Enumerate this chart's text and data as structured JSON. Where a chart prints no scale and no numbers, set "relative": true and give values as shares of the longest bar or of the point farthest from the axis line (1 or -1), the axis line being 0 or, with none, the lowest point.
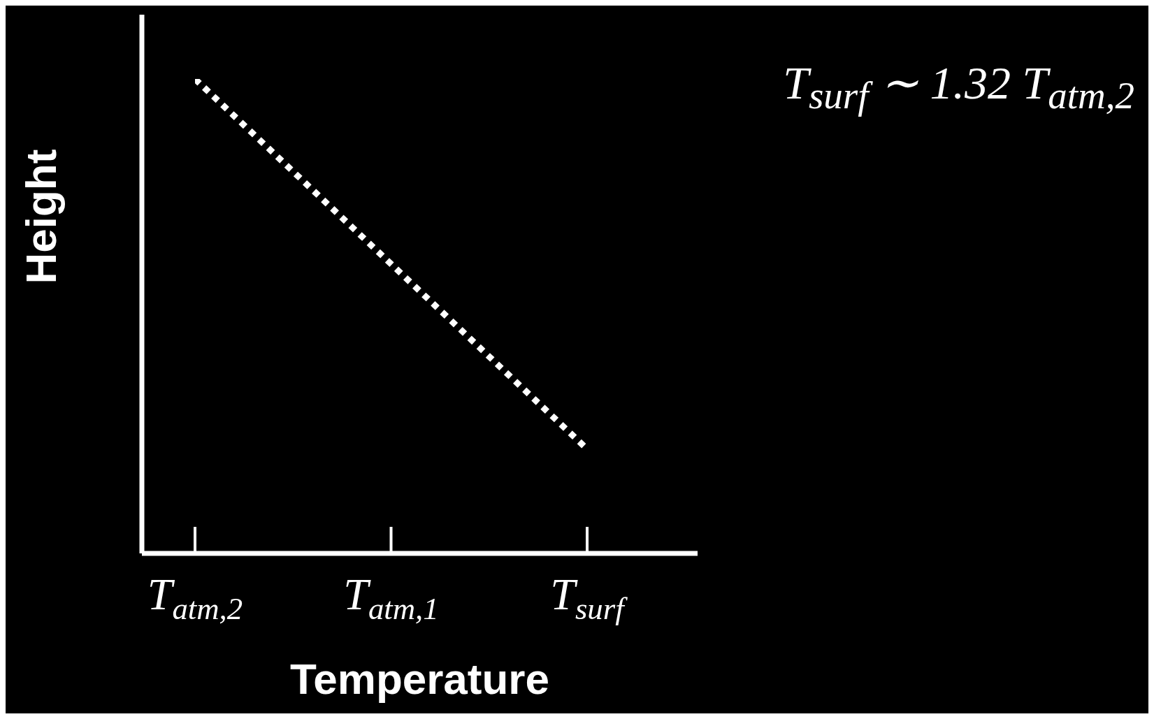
{
  "chart_data": {
    "type": "line",
    "relative": true,
    "xlabel": "Temperature",
    "ylabel": "Height",
    "categories": [
      "T$_{atm,2}$",
      "T$_{atm,1}$",
      "T$_{surf}$"
    ],
    "series": [
      {
        "color": "#ffffff",
        "values": [
          1,
          0.61,
          0.22
        ]
      }
    ],
    "line_style": "dotted",
    "marker": "none",
    "grid": false,
    "legend": false,
    "annotations": [
      "T$_{surf}$ ∼ 1.32 T$_{atm,2}$"
    ]
  }
}
